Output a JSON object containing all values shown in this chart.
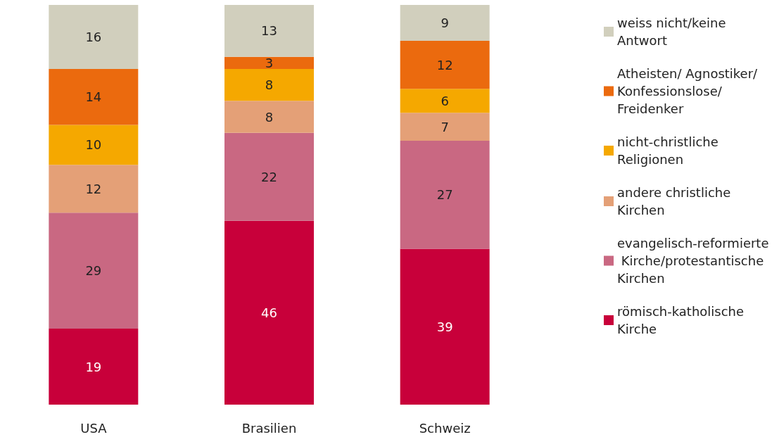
{
  "chart_data": {
    "type": "bar",
    "stacked": true,
    "categories": [
      "USA",
      "Brasilien",
      "Schweiz"
    ],
    "series": [
      {
        "name": "römisch-katholische Kirche",
        "color": "#c8003a",
        "values": [
          19,
          46,
          39
        ]
      },
      {
        "name": "evangelisch-reformierte Kirche/protestantische Kirchen",
        "color": "#c96882",
        "values": [
          29,
          22,
          27
        ]
      },
      {
        "name": "andere christliche Kirchen",
        "color": "#e4a077",
        "values": [
          12,
          8,
          7
        ]
      },
      {
        "name": "nicht-christliche Religionen",
        "color": "#f5a800",
        "values": [
          10,
          8,
          6
        ]
      },
      {
        "name": "Atheisten/ Agnostiker/ Konfessionslose/ Freidenker",
        "color": "#eb6a0e",
        "values": [
          14,
          3,
          12
        ]
      },
      {
        "name": "weiss nicht/keine Antwort",
        "color": "#d1cfbd",
        "values": [
          16,
          13,
          9
        ]
      }
    ],
    "ylim": [
      0,
      100
    ],
    "data_labels": true,
    "legend": "right",
    "tick_labels": "x"
  }
}
